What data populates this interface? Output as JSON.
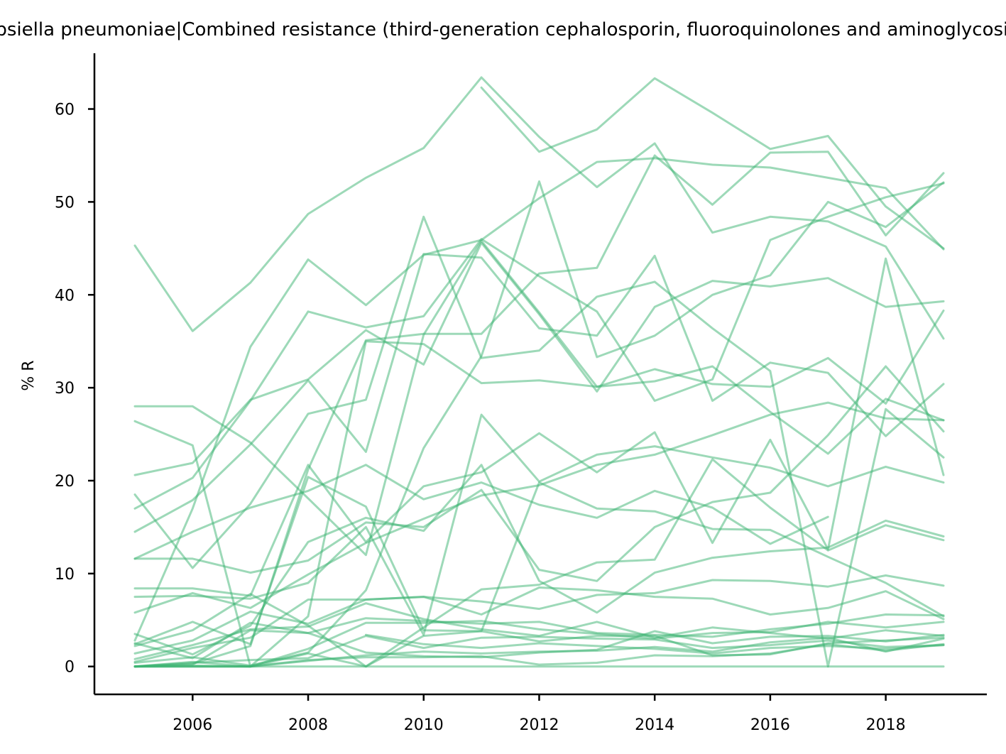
{
  "chart_data": {
    "type": "line",
    "title": "Klebsiella pneumoniae|Combined resistance (third-generation cephalosporin, fluoroquinolones and aminoglycoside)",
    "xlabel": "",
    "ylabel": "% R",
    "xlim": [
      2004.3,
      2019.75
    ],
    "ylim": [
      -3,
      66
    ],
    "x_ticks": [
      2006,
      2008,
      2010,
      2012,
      2014,
      2016,
      2018
    ],
    "y_ticks": [
      0,
      10,
      20,
      30,
      40,
      50,
      60
    ],
    "grid": false,
    "legend": "none",
    "color": "#3cb371",
    "x": [
      2005,
      2006,
      2007,
      2008,
      2009,
      2010,
      2011,
      2012,
      2013,
      2014,
      2015,
      2016,
      2017,
      2018,
      2019
    ],
    "series": [
      {
        "values": [
          45.3,
          36.1,
          41.3,
          48.7,
          52.6,
          55.8,
          63.4,
          57.0,
          51.6,
          56.3,
          46.7,
          48.4,
          47.9,
          45.2,
          35.3
        ]
      },
      {
        "values": [
          null,
          null,
          null,
          null,
          null,
          null,
          62.3,
          55.4,
          57.8,
          63.3,
          59.6,
          55.7,
          57.1,
          49.5,
          45.0
        ]
      },
      {
        "values": [
          2.8,
          17.0,
          34.4,
          43.8,
          38.9,
          44.3,
          45.9,
          50.4,
          54.3,
          54.7,
          54.0,
          53.7,
          52.6,
          51.5,
          44.9
        ]
      },
      {
        "values": [
          0.0,
          0.3,
          2.2,
          21.2,
          35.1,
          35.8,
          35.8,
          42.3,
          42.9,
          55.0,
          49.7,
          55.3,
          55.4,
          46.4,
          53.1
        ]
      },
      {
        "values": [
          0.4,
          1.0,
          0.1,
          1.5,
          8.2,
          23.5,
          33.4,
          52.2,
          33.3,
          35.6,
          40.0,
          42.1,
          50.0,
          47.3,
          52.1
        ]
      },
      {
        "values": [
          28.0,
          28.0,
          24.1,
          18.1,
          12.0,
          35.7,
          45.8,
          38.1,
          30.1,
          30.7,
          32.3,
          27.4,
          22.9,
          28.8,
          26.5
        ]
      },
      {
        "values": [
          26.4,
          23.8,
          0.0,
          5.4,
          35.0,
          34.7,
          30.5,
          30.8,
          30.1,
          32.0,
          30.4,
          30.1,
          33.2,
          28.3,
          38.3
        ]
      },
      {
        "values": [
          20.6,
          21.9,
          28.7,
          30.9,
          36.2,
          32.5,
          45.6,
          37.9,
          29.6,
          38.7,
          41.5,
          40.9,
          41.8,
          38.7,
          39.3
        ]
      },
      {
        "values": [
          18.5,
          10.6,
          17.5,
          27.2,
          28.7,
          48.4,
          33.2,
          34.0,
          39.8,
          41.4,
          36.4,
          31.8,
          0.0,
          27.7,
          22.5
        ]
      },
      {
        "values": [
          17.0,
          20.3,
          28.6,
          38.2,
          36.5,
          37.7,
          46.0,
          42.0,
          38.2,
          28.6,
          30.9,
          45.9,
          48.4,
          50.5,
          52.0
        ]
      },
      {
        "values": [
          14.5,
          17.9,
          23.9,
          30.8,
          23.1,
          44.4,
          44.0,
          36.4,
          35.6,
          44.2,
          28.6,
          32.7,
          31.6,
          24.8,
          30.4
        ]
      },
      {
        "values": [
          11.6,
          14.5,
          17.1,
          18.9,
          21.7,
          18.0,
          19.8,
          17.4,
          16.0,
          18.9,
          17.1,
          13.2,
          16.1,
          null,
          null
        ]
      },
      {
        "values": [
          11.6,
          11.6,
          10.1,
          11.4,
          15.5,
          15.0,
          19.0,
          10.4,
          9.2,
          15.0,
          17.7,
          18.7,
          24.9,
          32.3,
          25.3
        ]
      },
      {
        "values": [
          8.4,
          8.4,
          7.6,
          21.7,
          13.4,
          19.4,
          20.9,
          25.1,
          20.9,
          25.2,
          13.3,
          24.4,
          12.6,
          43.9,
          20.6
        ]
      },
      {
        "values": [
          7.5,
          7.6,
          7.3,
          9.0,
          15.0,
          3.4,
          27.1,
          19.9,
          22.8,
          23.7,
          22.5,
          21.4,
          19.4,
          21.5,
          19.8
        ]
      },
      {
        "values": [
          5.8,
          7.9,
          6.3,
          9.9,
          13.3,
          15.9,
          18.4,
          19.5,
          21.7,
          22.8,
          24.9,
          27.1,
          28.4,
          26.7,
          26.5
        ]
      },
      {
        "values": [
          3.5,
          1.3,
          4.4,
          13.4,
          16.0,
          14.6,
          21.7,
          9.2,
          5.8,
          10.1,
          11.7,
          12.4,
          12.8,
          15.7,
          14.0
        ]
      },
      {
        "values": [
          2.4,
          4.8,
          2.4,
          20.4,
          17.2,
          3.9,
          3.8,
          19.8,
          17.0,
          16.7,
          14.8,
          14.7,
          11.8,
          9.0,
          5.4
        ]
      },
      {
        "values": [
          2.2,
          3.9,
          7.8,
          4.4,
          0.0,
          4.2,
          8.3,
          8.8,
          11.2,
          11.5,
          22.3,
          17.1,
          12.5,
          15.2,
          13.6
        ]
      },
      {
        "values": [
          1.4,
          2.8,
          5.9,
          4.6,
          7.2,
          7.5,
          7.0,
          6.2,
          7.7,
          7.9,
          9.3,
          9.2,
          8.6,
          9.8,
          8.7
        ]
      },
      {
        "values": [
          0.8,
          2.3,
          4.0,
          4.3,
          6.8,
          5.1,
          4.0,
          3.3,
          4.8,
          3.1,
          4.2,
          3.6,
          3.0,
          3.9,
          3.3
        ]
      },
      {
        "values": [
          0.5,
          2.0,
          3.1,
          7.2,
          7.2,
          7.5,
          5.6,
          8.5,
          8.2,
          7.5,
          7.3,
          5.6,
          6.3,
          8.1,
          5.1
        ]
      },
      {
        "values": [
          0.0,
          0.2,
          3.9,
          3.6,
          5.2,
          4.9,
          4.6,
          4.8,
          3.6,
          3.4,
          3.2,
          4.0,
          4.6,
          5.6,
          5.5
        ]
      },
      {
        "values": [
          0.0,
          0.0,
          0.0,
          1.9,
          4.7,
          4.7,
          4.9,
          4.0,
          3.5,
          3.0,
          3.6,
          3.7,
          4.8,
          4.2,
          4.8
        ]
      },
      {
        "values": [
          0.0,
          0.4,
          0.7,
          0.9,
          3.3,
          2.0,
          3.1,
          3.2,
          3.0,
          2.9,
          2.0,
          2.3,
          2.8,
          2.1,
          2.3
        ]
      },
      {
        "values": [
          0.0,
          0.1,
          0.0,
          0.6,
          1.2,
          1.6,
          1.4,
          1.6,
          1.7,
          2.1,
          1.6,
          2.6,
          3.1,
          1.6,
          3.0
        ]
      },
      {
        "values": [
          0.0,
          0.5,
          0.0,
          1.4,
          0.0,
          3.3,
          3.8,
          2.7,
          3.3,
          3.3,
          1.2,
          1.3,
          2.5,
          2.8,
          3.1
        ]
      },
      {
        "values": [
          0.0,
          0.0,
          0.0,
          0.0,
          0.0,
          0.0,
          0.0,
          0.0,
          0.0,
          0.0,
          0.0,
          0.0,
          0.0,
          0.0,
          0.0
        ]
      },
      {
        "values": [
          0.0,
          0.0,
          0.0,
          0.7,
          1.0,
          1.0,
          1.1,
          0.2,
          0.4,
          1.2,
          1.1,
          1.4,
          2.4,
          1.7,
          2.4
        ]
      },
      {
        "values": [
          2.5,
          0.9,
          4.7,
          3.6,
          1.5,
          1.1,
          1.0,
          1.5,
          1.8,
          3.8,
          2.5,
          3.2,
          3.3,
          2.7,
          3.4
        ]
      },
      {
        "values": [
          null,
          null,
          null,
          null,
          3.4,
          2.4,
          2.0,
          2.5,
          2.2,
          1.9,
          1.4,
          2.0,
          2.2,
          1.9,
          2.3
        ]
      }
    ]
  }
}
